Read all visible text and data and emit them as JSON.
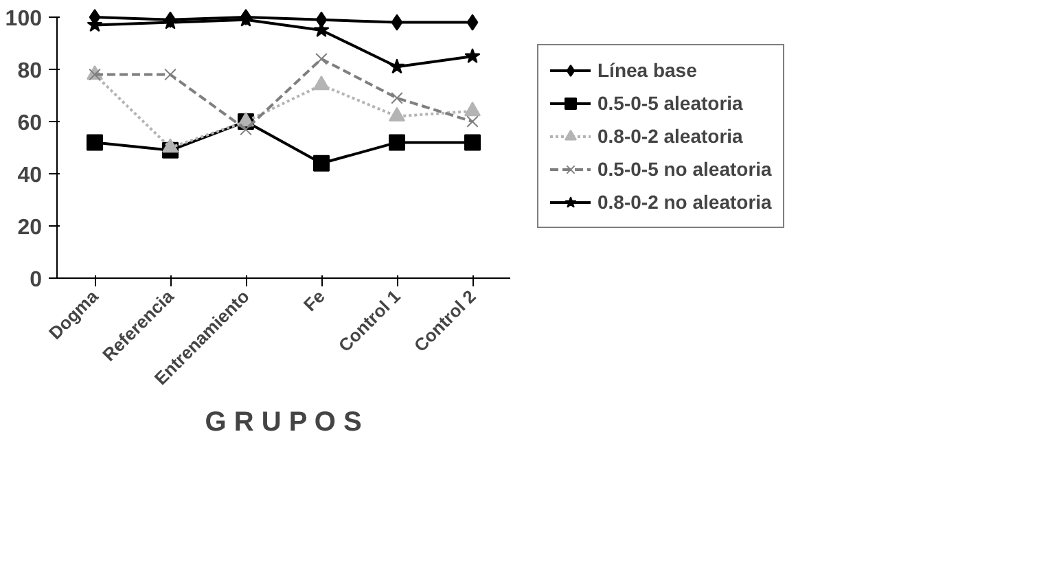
{
  "chart_data": {
    "type": "line",
    "xlabel": "G R U P O S",
    "categories": [
      "Dogma",
      "Referencia",
      "Entrenamiento",
      "Fe",
      "Control 1",
      "Control 2"
    ],
    "ylim": [
      0,
      100
    ],
    "yticks": [
      0,
      20,
      40,
      60,
      80,
      100
    ],
    "grid": false,
    "legend": "right",
    "series": [
      {
        "name": "Línea base",
        "color": "#000000",
        "marker": "diamond",
        "line_style": "solid",
        "values": [
          100,
          99,
          100,
          99,
          98,
          98
        ]
      },
      {
        "name": "0.5-0-5 aleatoria",
        "color": "#000000",
        "marker": "square",
        "line_style": "solid",
        "values": [
          52,
          49,
          60,
          44,
          52,
          52
        ]
      },
      {
        "name": "0.8-0-2 aleatoria",
        "color": "#b4b4b4",
        "marker": "triangle",
        "line_style": "dotted",
        "values": [
          78,
          50,
          60,
          74,
          62,
          64
        ]
      },
      {
        "name": "0.5-0-5 no aleatoria",
        "color": "#7f7f7f",
        "marker": "cross",
        "line_style": "dashed",
        "values": [
          78,
          78,
          57,
          84,
          69,
          60
        ]
      },
      {
        "name": "0.8-0-2 no aleatoria",
        "color": "#000000",
        "marker": "star",
        "line_style": "solid",
        "values": [
          97,
          98,
          99,
          95,
          81,
          85
        ]
      }
    ]
  }
}
